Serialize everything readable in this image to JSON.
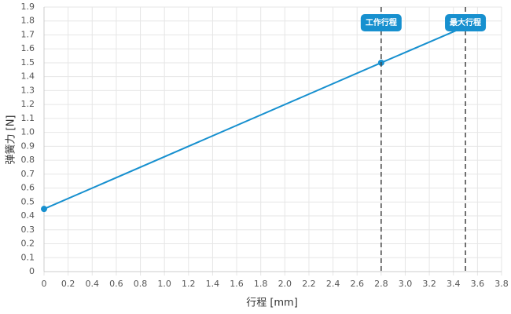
{
  "chart_data": {
    "type": "line",
    "x": [
      0,
      2.8,
      3.5
    ],
    "series": [
      {
        "color": "#1790cf",
        "values": [
          0.45,
          1.5,
          1.76
        ],
        "markers": [
          true,
          true,
          false
        ]
      }
    ],
    "xlabel": "行程 [mm]",
    "ylabel": "弹簧力 [N]",
    "xlim": [
      0,
      3.8
    ],
    "xticks": [
      0,
      0.2,
      0.4,
      0.6,
      0.8,
      {
        "value": 1,
        "label": "1.0"
      },
      1.2,
      1.4,
      1.6,
      1.8,
      {
        "value": 2,
        "label": "2.0"
      },
      2.2,
      2.4,
      2.6,
      2.8,
      {
        "value": 3,
        "label": "3.0"
      },
      3.2,
      3.4,
      3.6,
      3.8
    ],
    "ylim": [
      0,
      1.9
    ],
    "yticks": [
      0,
      0.1,
      0.2,
      0.3,
      0.4,
      0.5,
      0.6,
      0.7,
      0.8,
      0.9,
      {
        "value": 1,
        "label": "1.0"
      },
      1.1,
      1.2,
      1.3,
      1.4,
      1.5,
      1.6,
      1.7,
      1.8,
      1.9
    ],
    "grid": true,
    "annotations": [
      {
        "x": 2.8,
        "label": "工作行程"
      },
      {
        "x": 3.5,
        "label": "最大行程"
      }
    ]
  }
}
